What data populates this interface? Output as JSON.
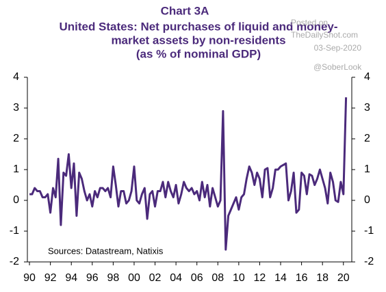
{
  "chart_data": {
    "type": "line",
    "title": "Chart 3A",
    "subtitle_lines": [
      "United States: Net purchases of liquid and money-",
      "market assets by non-residents",
      "(as % of nominal GDP)"
    ],
    "watermark_lines": [
      "Posted on",
      "TheDailyShot.com",
      "03-Sep-2020"
    ],
    "handle": "@SoberLook",
    "source": "Sources:  Datastream,  Natixis",
    "xlim": [
      1989.8,
      2020.8
    ],
    "xticks": [
      {
        "value": 1990,
        "label": "90"
      },
      {
        "value": 1992,
        "label": "92"
      },
      {
        "value": 1994,
        "label": "94"
      },
      {
        "value": 1996,
        "label": "96"
      },
      {
        "value": 1998,
        "label": "98"
      },
      {
        "value": 2000,
        "label": "00"
      },
      {
        "value": 2002,
        "label": "02"
      },
      {
        "value": 2004,
        "label": "04"
      },
      {
        "value": 2006,
        "label": "06"
      },
      {
        "value": 2008,
        "label": "08"
      },
      {
        "value": 2010,
        "label": "10"
      },
      {
        "value": 2012,
        "label": "12"
      },
      {
        "value": 2014,
        "label": "14"
      },
      {
        "value": 2016,
        "label": "16"
      },
      {
        "value": 2018,
        "label": "18"
      },
      {
        "value": 2020,
        "label": "20"
      }
    ],
    "ylim": [
      -2,
      4
    ],
    "yticks": [
      -2,
      -1,
      0,
      1,
      2,
      3,
      4
    ],
    "y2lim": [
      -2,
      4
    ],
    "y2ticks": [
      -2,
      -1,
      0,
      1,
      2,
      3,
      4
    ],
    "x": [
      1990,
      1990.25,
      1990.5,
      1990.75,
      1991,
      1991.25,
      1991.5,
      1991.75,
      1992,
      1992.25,
      1992.5,
      1992.75,
      1993,
      1993.25,
      1993.5,
      1993.75,
      1994,
      1994.25,
      1994.5,
      1994.75,
      1995,
      1995.25,
      1995.5,
      1995.75,
      1996,
      1996.25,
      1996.5,
      1996.75,
      1997,
      1997.25,
      1997.5,
      1997.75,
      1998,
      1998.25,
      1998.5,
      1998.75,
      1999,
      1999.25,
      1999.5,
      1999.75,
      2000,
      2000.25,
      2000.5,
      2000.75,
      2001,
      2001.25,
      2001.5,
      2001.75,
      2002,
      2002.25,
      2002.5,
      2002.75,
      2003,
      2003.25,
      2003.5,
      2003.75,
      2004,
      2004.25,
      2004.5,
      2004.75,
      2005,
      2005.25,
      2005.5,
      2005.75,
      2006,
      2006.25,
      2006.5,
      2006.75,
      2007,
      2007.25,
      2007.5,
      2007.75,
      2008,
      2008.25,
      2008.5,
      2008.75,
      2009,
      2009.25,
      2009.5,
      2009.75,
      2010,
      2010.25,
      2010.5,
      2010.75,
      2011,
      2011.25,
      2011.5,
      2011.75,
      2012,
      2012.25,
      2012.5,
      2012.75,
      2013,
      2013.25,
      2013.5,
      2013.75,
      2014,
      2014.25,
      2014.5,
      2014.75,
      2015,
      2015.25,
      2015.5,
      2015.75,
      2016,
      2016.25,
      2016.5,
      2016.75,
      2017,
      2017.25,
      2017.5,
      2017.75,
      2018,
      2018.25,
      2018.5,
      2018.75,
      2019,
      2019.25,
      2019.5,
      2019.75,
      2020,
      2020.25
    ],
    "series": [
      {
        "color": "#4b2a7b",
        "values": [
          0.2,
          0.2,
          0.4,
          0.3,
          0.3,
          0.1,
          0.1,
          0.2,
          -0.4,
          0.4,
          0.1,
          1.35,
          -0.8,
          0.9,
          0.8,
          1.5,
          0.4,
          1.2,
          -0.5,
          0.9,
          0.7,
          0.3,
          0,
          0.2,
          -0.2,
          0.3,
          0.1,
          0.4,
          0.4,
          0.3,
          0.4,
          0.1,
          1.1,
          0.5,
          -0.2,
          0.3,
          0.3,
          -0.1,
          0,
          0.3,
          1.1,
          0,
          -0.1,
          0.2,
          0.4,
          -0.6,
          0.2,
          0.3,
          -0.2,
          0.3,
          0.3,
          0.6,
          0.1,
          0.6,
          0.3,
          0.1,
          0.5,
          -0.1,
          0.2,
          0.6,
          0.4,
          0.3,
          0.4,
          0.2,
          0.3,
          0,
          0.6,
          0.1,
          0.5,
          -0.2,
          0.4,
          0.1,
          -0.2,
          0,
          2.9,
          -1.6,
          -0.5,
          -0.3,
          -0.1,
          0.1,
          -0.3,
          0.1,
          0.2,
          0.7,
          1.1,
          0.9,
          0.5,
          0.9,
          0.7,
          0.1,
          1,
          1.05,
          0.1,
          0.4,
          1,
          1,
          1.1,
          1.15,
          1.2,
          0,
          0.3,
          0.9,
          -0.4,
          -0.3,
          0.9,
          0.8,
          0.2,
          0.85,
          0.8,
          0.5,
          0.7,
          1,
          0.7,
          0.4,
          -0.1,
          0.9,
          0.6,
          0,
          -0.05,
          0.6,
          0.2,
          3.35
        ]
      }
    ]
  }
}
